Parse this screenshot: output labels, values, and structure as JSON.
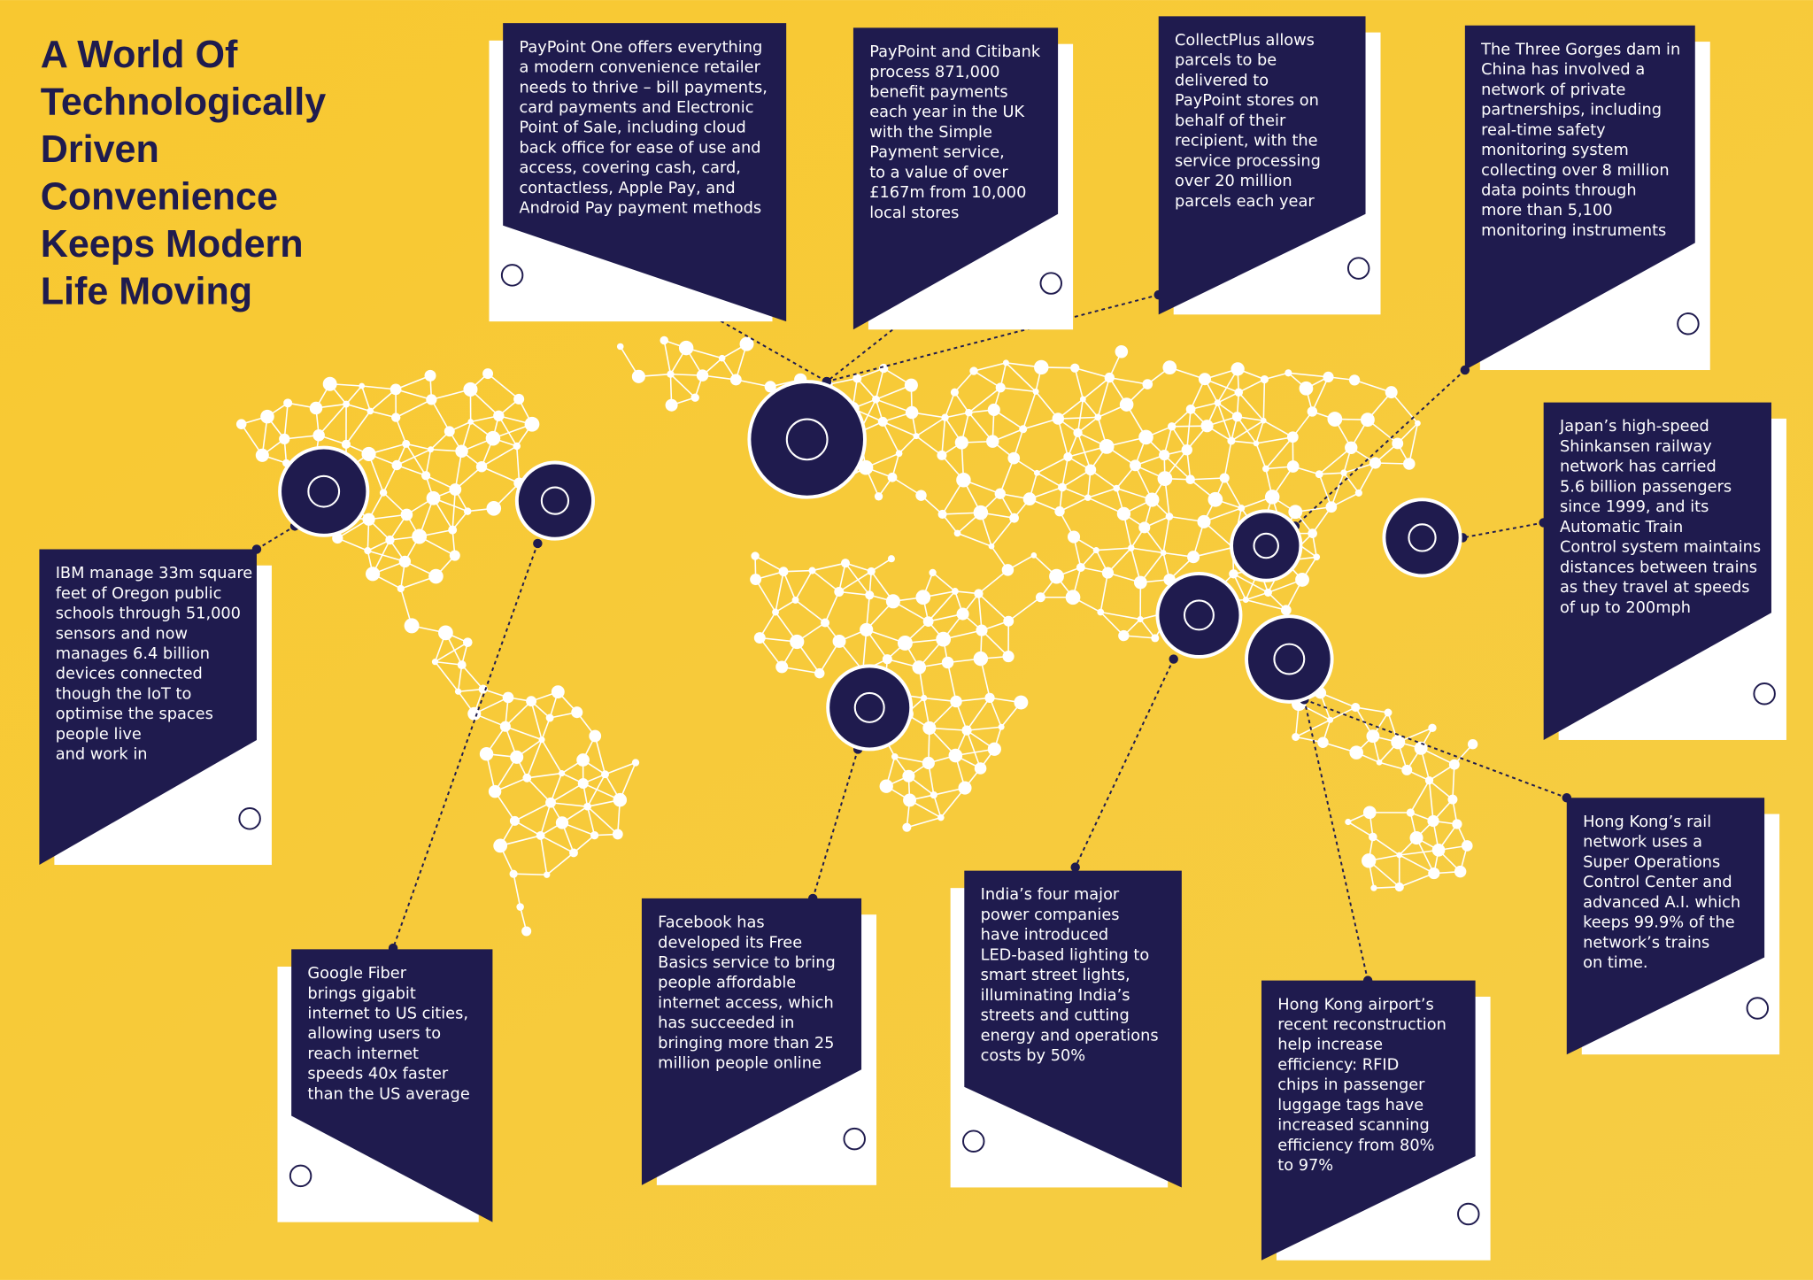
{
  "title": [
    "A World Of",
    "Technologically",
    "Driven",
    "Convenience",
    "Keeps Modern",
    "Life Moving"
  ],
  "cards": [
    {
      "lines": [
        "PayPoint One offers everything",
        "a modern convenience retailer",
        "needs to thrive – bill payments,",
        "card payments and Electronic",
        "Point of Sale, including cloud",
        "back office for ease of use and",
        "access, covering cash, card,",
        "contactless, Apple Pay, and",
        "Android Pay payment methods"
      ]
    },
    {
      "lines": [
        "PayPoint and Citibank",
        "process 871,000",
        "benefit payments",
        "each year in the UK",
        "with the Simple",
        "Payment service,",
        "to a value of over",
        "£167m from 10,000",
        "local stores"
      ]
    },
    {
      "lines": [
        "CollectPlus allows",
        "parcels to be",
        "delivered to",
        "PayPoint stores on",
        "behalf of their",
        "recipient, with the",
        "service processing",
        "over 20 million",
        "parcels each year"
      ]
    },
    {
      "lines": [
        "The Three Gorges dam in",
        "China has involved a",
        "network of private",
        "partnerships, including",
        "real-time safety",
        "monitoring system",
        "collecting over 8 million",
        "data points through",
        "more than 5,100",
        "monitoring instruments"
      ]
    },
    {
      "lines": [
        "Japan’s high-speed",
        "Shinkansen railway",
        "network has carried",
        "5.6 billion passengers",
        "since 1999, and its",
        "Automatic Train",
        "Control system maintains",
        "distances between trains",
        "as they travel at speeds",
        "of up to 200mph"
      ]
    },
    {
      "lines": [
        "IBM manage 33m square",
        "feet of Oregon public",
        "schools through 51,000",
        "sensors and now",
        "manages 6.4 billion",
        "devices connected",
        "though the IoT to",
        "optimise the spaces",
        "people live",
        "and work in"
      ]
    },
    {
      "lines": [
        "Google Fiber",
        "brings gigabit",
        "internet to US cities,",
        "allowing users to",
        "reach internet",
        "speeds 40x faster",
        "than the US average"
      ]
    },
    {
      "lines": [
        "Facebook has",
        "developed its Free",
        "Basics service to bring",
        "people affordable",
        "internet access, which",
        "has succeeded in",
        "bringing more than 25",
        "million people online"
      ]
    },
    {
      "lines": [
        "India’s four major",
        "power companies",
        "have introduced",
        "LED-based lighting to",
        "smart street lights,",
        "illuminating India’s",
        "streets and cutting",
        "energy and operations",
        "costs by 50%"
      ]
    },
    {
      "lines": [
        "Hong Kong airport’s",
        "recent reconstruction",
        "help increase",
        "efficiency: RFID",
        "chips in passenger",
        "luggage tags have",
        "increased scanning",
        "efficiency from 80%",
        "to 97%"
      ]
    },
    {
      "lines": [
        "Hong Kong’s rail",
        "network uses a",
        "Super Operations",
        "Control Center and",
        "advanced A.I. which",
        "keeps 99.9% of the",
        "network’s trains",
        "on time."
      ]
    }
  ]
}
